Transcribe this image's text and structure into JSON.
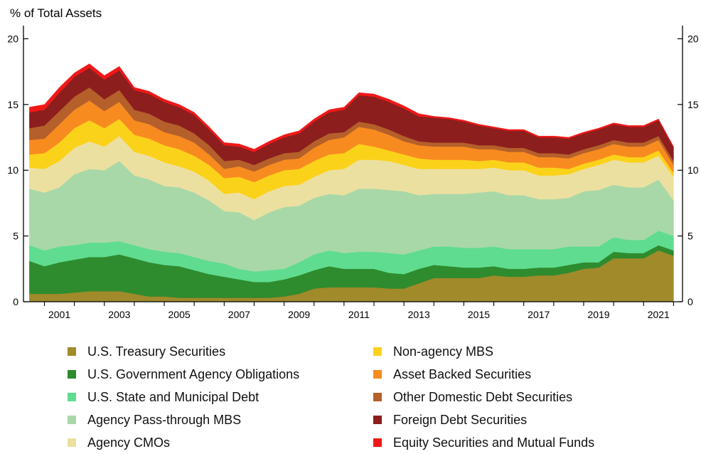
{
  "chart_data": {
    "type": "area",
    "stacked": true,
    "ylabel": "% of Total Assets",
    "ylim": [
      0,
      21
    ],
    "yticks": [
      0,
      5,
      10,
      15,
      20
    ],
    "xlim": [
      2000.3,
      2022.3
    ],
    "xticks": [
      "2001",
      "2003",
      "2005",
      "2007",
      "2009",
      "2011",
      "2013",
      "2015",
      "2017",
      "2019",
      "2021"
    ],
    "grid": false,
    "legend_position": "bottom",
    "x": [
      2000.5,
      2001.0,
      2001.5,
      2002.0,
      2002.5,
      2003.0,
      2003.5,
      2004.0,
      2004.5,
      2005.0,
      2005.5,
      2006.0,
      2006.5,
      2007.0,
      2007.5,
      2008.0,
      2008.5,
      2009.0,
      2009.5,
      2010.0,
      2010.5,
      2011.0,
      2011.5,
      2012.0,
      2012.5,
      2013.0,
      2013.5,
      2014.0,
      2014.5,
      2015.0,
      2015.5,
      2016.0,
      2016.5,
      2017.0,
      2017.5,
      2018.0,
      2018.5,
      2019.0,
      2019.5,
      2020.0,
      2020.5,
      2021.0,
      2021.5,
      2022.0
    ],
    "series": [
      {
        "name": "U.S. Treasury Securities",
        "color": "#a08a2a",
        "values": [
          0.6,
          0.6,
          0.6,
          0.7,
          0.8,
          0.8,
          0.8,
          0.6,
          0.4,
          0.4,
          0.3,
          0.3,
          0.3,
          0.3,
          0.3,
          0.3,
          0.3,
          0.4,
          0.6,
          1.0,
          1.1,
          1.1,
          1.1,
          1.1,
          1.0,
          1.0,
          1.4,
          1.8,
          1.8,
          1.8,
          1.8,
          2.0,
          1.9,
          1.9,
          2.0,
          2.0,
          2.2,
          2.5,
          2.6,
          3.3,
          3.3,
          3.3,
          3.9,
          3.5
        ]
      },
      {
        "name": "U.S. Government Agency Obligations",
        "color": "#2e8b2e",
        "values": [
          2.5,
          2.1,
          2.4,
          2.5,
          2.6,
          2.6,
          2.8,
          2.7,
          2.6,
          2.4,
          2.4,
          2.1,
          1.8,
          1.6,
          1.4,
          1.2,
          1.2,
          1.3,
          1.4,
          1.4,
          1.6,
          1.4,
          1.4,
          1.4,
          1.2,
          1.1,
          1.1,
          1.0,
          0.9,
          0.8,
          0.8,
          0.7,
          0.6,
          0.6,
          0.6,
          0.6,
          0.6,
          0.5,
          0.4,
          0.5,
          0.4,
          0.4,
          0.4,
          0.4
        ]
      },
      {
        "name": "U.S. State and Municipal Debt",
        "color": "#5fdc8f",
        "values": [
          1.2,
          1.2,
          1.2,
          1.1,
          1.1,
          1.1,
          1.0,
          1.0,
          1.0,
          1.0,
          1.0,
          1.0,
          1.0,
          1.0,
          0.8,
          0.8,
          0.9,
          0.8,
          1.0,
          1.2,
          1.2,
          1.2,
          1.3,
          1.3,
          1.5,
          1.5,
          1.4,
          1.4,
          1.5,
          1.5,
          1.5,
          1.5,
          1.5,
          1.5,
          1.4,
          1.4,
          1.4,
          1.2,
          1.2,
          1.1,
          1.0,
          1.0,
          1.1,
          1.1
        ]
      },
      {
        "name": "Agency Pass-through MBS",
        "color": "#a8d8a8",
        "values": [
          4.3,
          4.4,
          4.5,
          5.4,
          5.6,
          5.5,
          6.1,
          5.3,
          5.3,
          5.0,
          5.0,
          4.9,
          4.6,
          4.0,
          4.3,
          3.9,
          4.4,
          4.7,
          4.3,
          4.3,
          4.3,
          4.4,
          4.8,
          4.8,
          4.8,
          4.8,
          4.2,
          4.0,
          4.0,
          4.1,
          4.2,
          4.2,
          4.1,
          4.1,
          3.8,
          3.8,
          3.7,
          4.2,
          4.3,
          4.0,
          4.0,
          4.0,
          3.9,
          2.7
        ]
      },
      {
        "name": "Agency CMOs",
        "color": "#ece0a0",
        "values": [
          1.6,
          1.8,
          2.0,
          2.0,
          2.1,
          1.8,
          1.9,
          1.8,
          1.8,
          1.8,
          1.6,
          1.6,
          1.5,
          1.3,
          1.5,
          1.6,
          1.6,
          1.6,
          1.6,
          1.6,
          1.8,
          2.0,
          2.2,
          2.2,
          2.2,
          2.0,
          2.0,
          1.9,
          1.9,
          1.9,
          1.8,
          1.8,
          1.9,
          1.9,
          1.8,
          1.8,
          1.8,
          1.7,
          1.9,
          1.9,
          1.9,
          1.9,
          1.8,
          1.8
        ]
      },
      {
        "name": "Non-agency MBS",
        "color": "#fbd21a",
        "values": [
          1.0,
          1.2,
          1.4,
          1.5,
          1.6,
          1.4,
          1.3,
          1.3,
          1.3,
          1.3,
          1.3,
          1.2,
          1.2,
          1.2,
          1.2,
          1.3,
          1.2,
          1.2,
          1.2,
          1.2,
          1.2,
          1.2,
          1.2,
          1.0,
          0.8,
          0.8,
          0.8,
          0.7,
          0.7,
          0.7,
          0.6,
          0.6,
          0.6,
          0.6,
          0.6,
          0.6,
          0.4,
          0.4,
          0.4,
          0.4,
          0.4,
          0.4,
          0.4,
          0.3
        ]
      },
      {
        "name": "Asset Backed Securities",
        "color": "#f88b20",
        "values": [
          1.1,
          1.1,
          1.4,
          1.4,
          1.5,
          1.3,
          1.3,
          1.1,
          1.1,
          1.0,
          1.0,
          1.0,
          0.8,
          0.7,
          0.8,
          0.8,
          0.8,
          0.8,
          0.8,
          1.0,
          1.1,
          1.2,
          1.3,
          1.3,
          1.2,
          1.0,
          1.0,
          1.0,
          1.0,
          1.0,
          0.9,
          0.8,
          0.8,
          0.8,
          0.8,
          0.8,
          0.8,
          0.8,
          0.8,
          0.8,
          0.8,
          0.8,
          0.8,
          0.6
        ]
      },
      {
        "name": "Other Domestic Debt Securities",
        "color": "#b5602a",
        "values": [
          0.9,
          1.0,
          1.0,
          1.0,
          1.0,
          0.9,
          0.9,
          0.8,
          0.8,
          0.8,
          0.8,
          0.7,
          0.7,
          0.6,
          0.5,
          0.5,
          0.5,
          0.5,
          0.5,
          0.5,
          0.5,
          0.4,
          0.4,
          0.4,
          0.4,
          0.4,
          0.3,
          0.3,
          0.3,
          0.3,
          0.3,
          0.3,
          0.3,
          0.3,
          0.3,
          0.3,
          0.3,
          0.3,
          0.3,
          0.3,
          0.3,
          0.3,
          0.3,
          0.3
        ]
      },
      {
        "name": "Foreign Debt Securities",
        "color": "#8c1e1e",
        "values": [
          1.2,
          1.2,
          1.4,
          1.5,
          1.5,
          1.5,
          1.5,
          1.5,
          1.5,
          1.5,
          1.4,
          1.4,
          1.2,
          1.2,
          1.0,
          1.0,
          1.1,
          1.2,
          1.4,
          1.5,
          1.6,
          1.7,
          2.0,
          2.1,
          2.1,
          2.1,
          1.9,
          1.9,
          1.8,
          1.6,
          1.5,
          1.3,
          1.3,
          1.3,
          1.2,
          1.2,
          1.2,
          1.2,
          1.2,
          1.2,
          1.2,
          1.2,
          1.2,
          1.0
        ]
      },
      {
        "name": "Equity Securities and Mutual Funds",
        "color": "#f01818",
        "values": [
          0.4,
          0.4,
          0.4,
          0.3,
          0.3,
          0.3,
          0.3,
          0.2,
          0.2,
          0.2,
          0.2,
          0.2,
          0.2,
          0.2,
          0.2,
          0.2,
          0.2,
          0.2,
          0.2,
          0.2,
          0.2,
          0.2,
          0.2,
          0.2,
          0.2,
          0.2,
          0.2,
          0.1,
          0.1,
          0.1,
          0.1,
          0.1,
          0.1,
          0.1,
          0.1,
          0.1,
          0.1,
          0.1,
          0.1,
          0.1,
          0.1,
          0.1,
          0.1,
          0.1
        ]
      }
    ]
  }
}
